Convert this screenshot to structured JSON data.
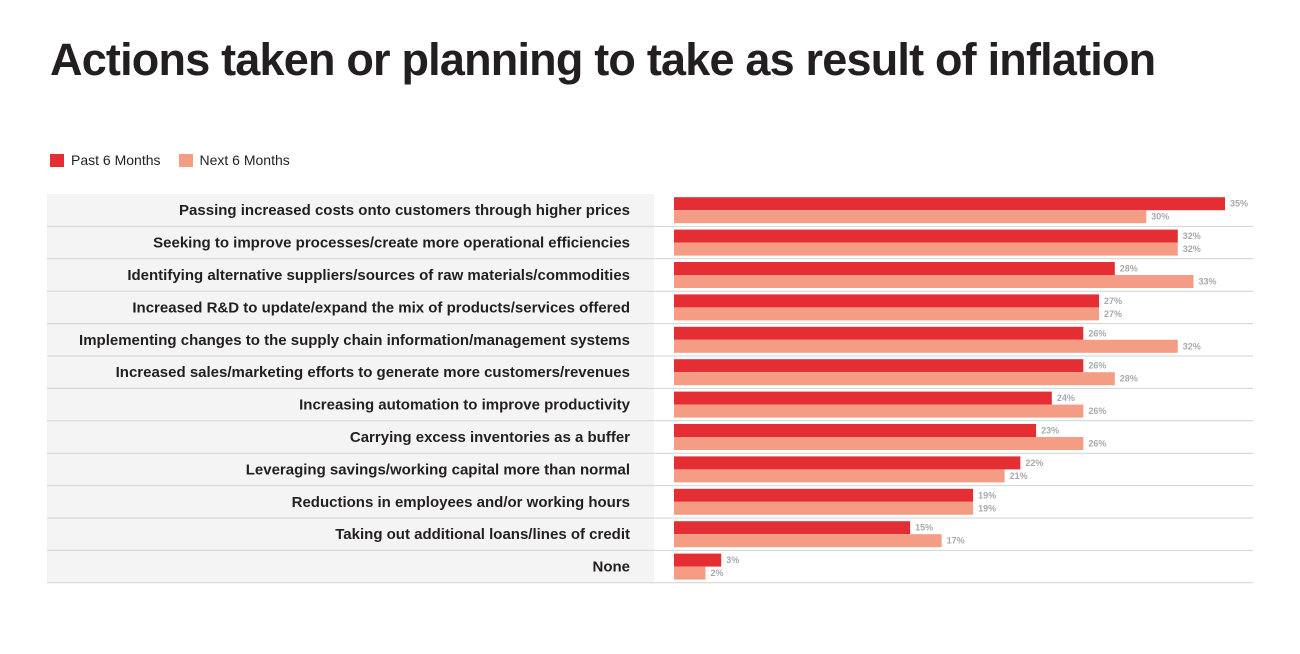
{
  "title": "Actions taken or planning to take as result of inflation",
  "colors": {
    "past": "#e52d34",
    "next": "#f59c84",
    "label_bg": "#f4f4f4",
    "divider": "#d1d3d4",
    "value_text": "#a7a9ac"
  },
  "chart_data": {
    "type": "bar",
    "orientation": "horizontal",
    "title": "Actions taken or planning to take as result of inflation",
    "legend_position": "top-left",
    "xlim": [
      0,
      35
    ],
    "value_format": "percent",
    "categories": [
      "Passing increased costs onto customers through higher prices",
      "Seeking to improve processes/create more operational efficiencies",
      "Identifying alternative suppliers/sources of raw materials/commodities",
      "Increased R&D to update/expand the mix of products/services offered",
      "Implementing changes to the supply chain information/management systems",
      "Increased sales/marketing efforts to generate more customers/revenues",
      "Increasing automation to improve productivity",
      "Carrying excess inventories as a buffer",
      "Leveraging savings/working capital more than normal",
      "Reductions in employees and/or working hours",
      "Taking out additional loans/lines of credit",
      "None"
    ],
    "series": [
      {
        "name": "Past 6 Months",
        "color": "#e52d34",
        "values": [
          35,
          32,
          28,
          27,
          26,
          26,
          24,
          23,
          22,
          19,
          15,
          3
        ]
      },
      {
        "name": "Next 6 Months",
        "color": "#f59c84",
        "values": [
          30,
          32,
          33,
          27,
          32,
          28,
          26,
          26,
          21,
          19,
          17,
          2
        ]
      }
    ]
  }
}
